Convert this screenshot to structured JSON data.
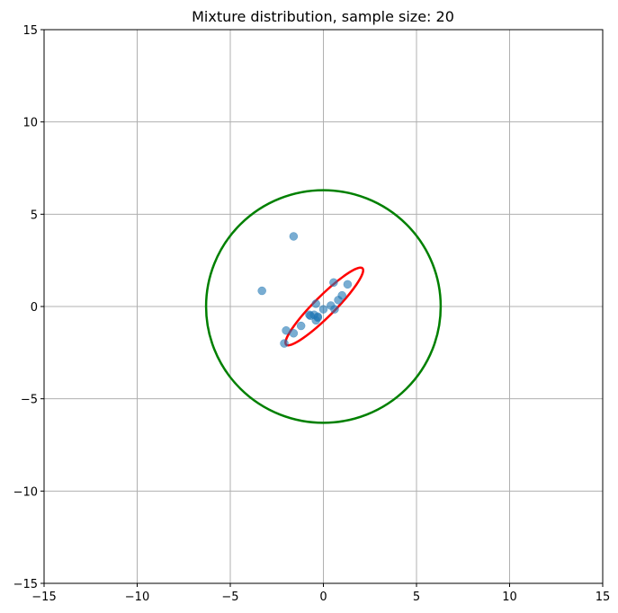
{
  "chart_data": {
    "type": "scatter",
    "title": "Mixture distribution, sample size: 20",
    "xlabel": "",
    "ylabel": "",
    "xlim": [
      -15,
      15
    ],
    "ylim": [
      -15,
      15
    ],
    "x_ticks": [
      -15,
      -10,
      -5,
      0,
      5,
      10,
      15
    ],
    "y_ticks": [
      -15,
      -10,
      -5,
      0,
      5,
      10,
      15
    ],
    "x_tick_labels": [
      "−15",
      "−10",
      "−5",
      "0",
      "5",
      "10",
      "15"
    ],
    "y_tick_labels": [
      "−15",
      "−10",
      "−5",
      "0",
      "5",
      "10",
      "15"
    ],
    "grid": true,
    "points": {
      "color": "#1f77b4",
      "alpha": 0.6,
      "x": [
        -1.6,
        -3.3,
        0.55,
        1.3,
        1.0,
        0.8,
        0.4,
        0.6,
        0.0,
        -0.4,
        -0.5,
        -0.7,
        -0.75,
        -0.3,
        -0.4,
        -1.2,
        -2.0,
        -1.6,
        -2.1,
        -0.3
      ],
      "y": [
        3.8,
        0.85,
        1.3,
        1.2,
        0.6,
        0.35,
        0.05,
        -0.15,
        -0.15,
        0.15,
        -0.45,
        -0.5,
        -0.45,
        -0.6,
        -0.75,
        -1.05,
        -1.3,
        -1.45,
        -2.0,
        -0.55
      ]
    },
    "ellipses": [
      {
        "color": "#008000",
        "cx": 0.0,
        "cy": 0.0,
        "rx": 6.3,
        "ry": 6.3,
        "angle_deg": 0
      },
      {
        "color": "#ff0000",
        "cx": 0.05,
        "cy": 0.0,
        "rx": 2.9,
        "ry": 0.55,
        "angle_deg": 45
      }
    ]
  }
}
